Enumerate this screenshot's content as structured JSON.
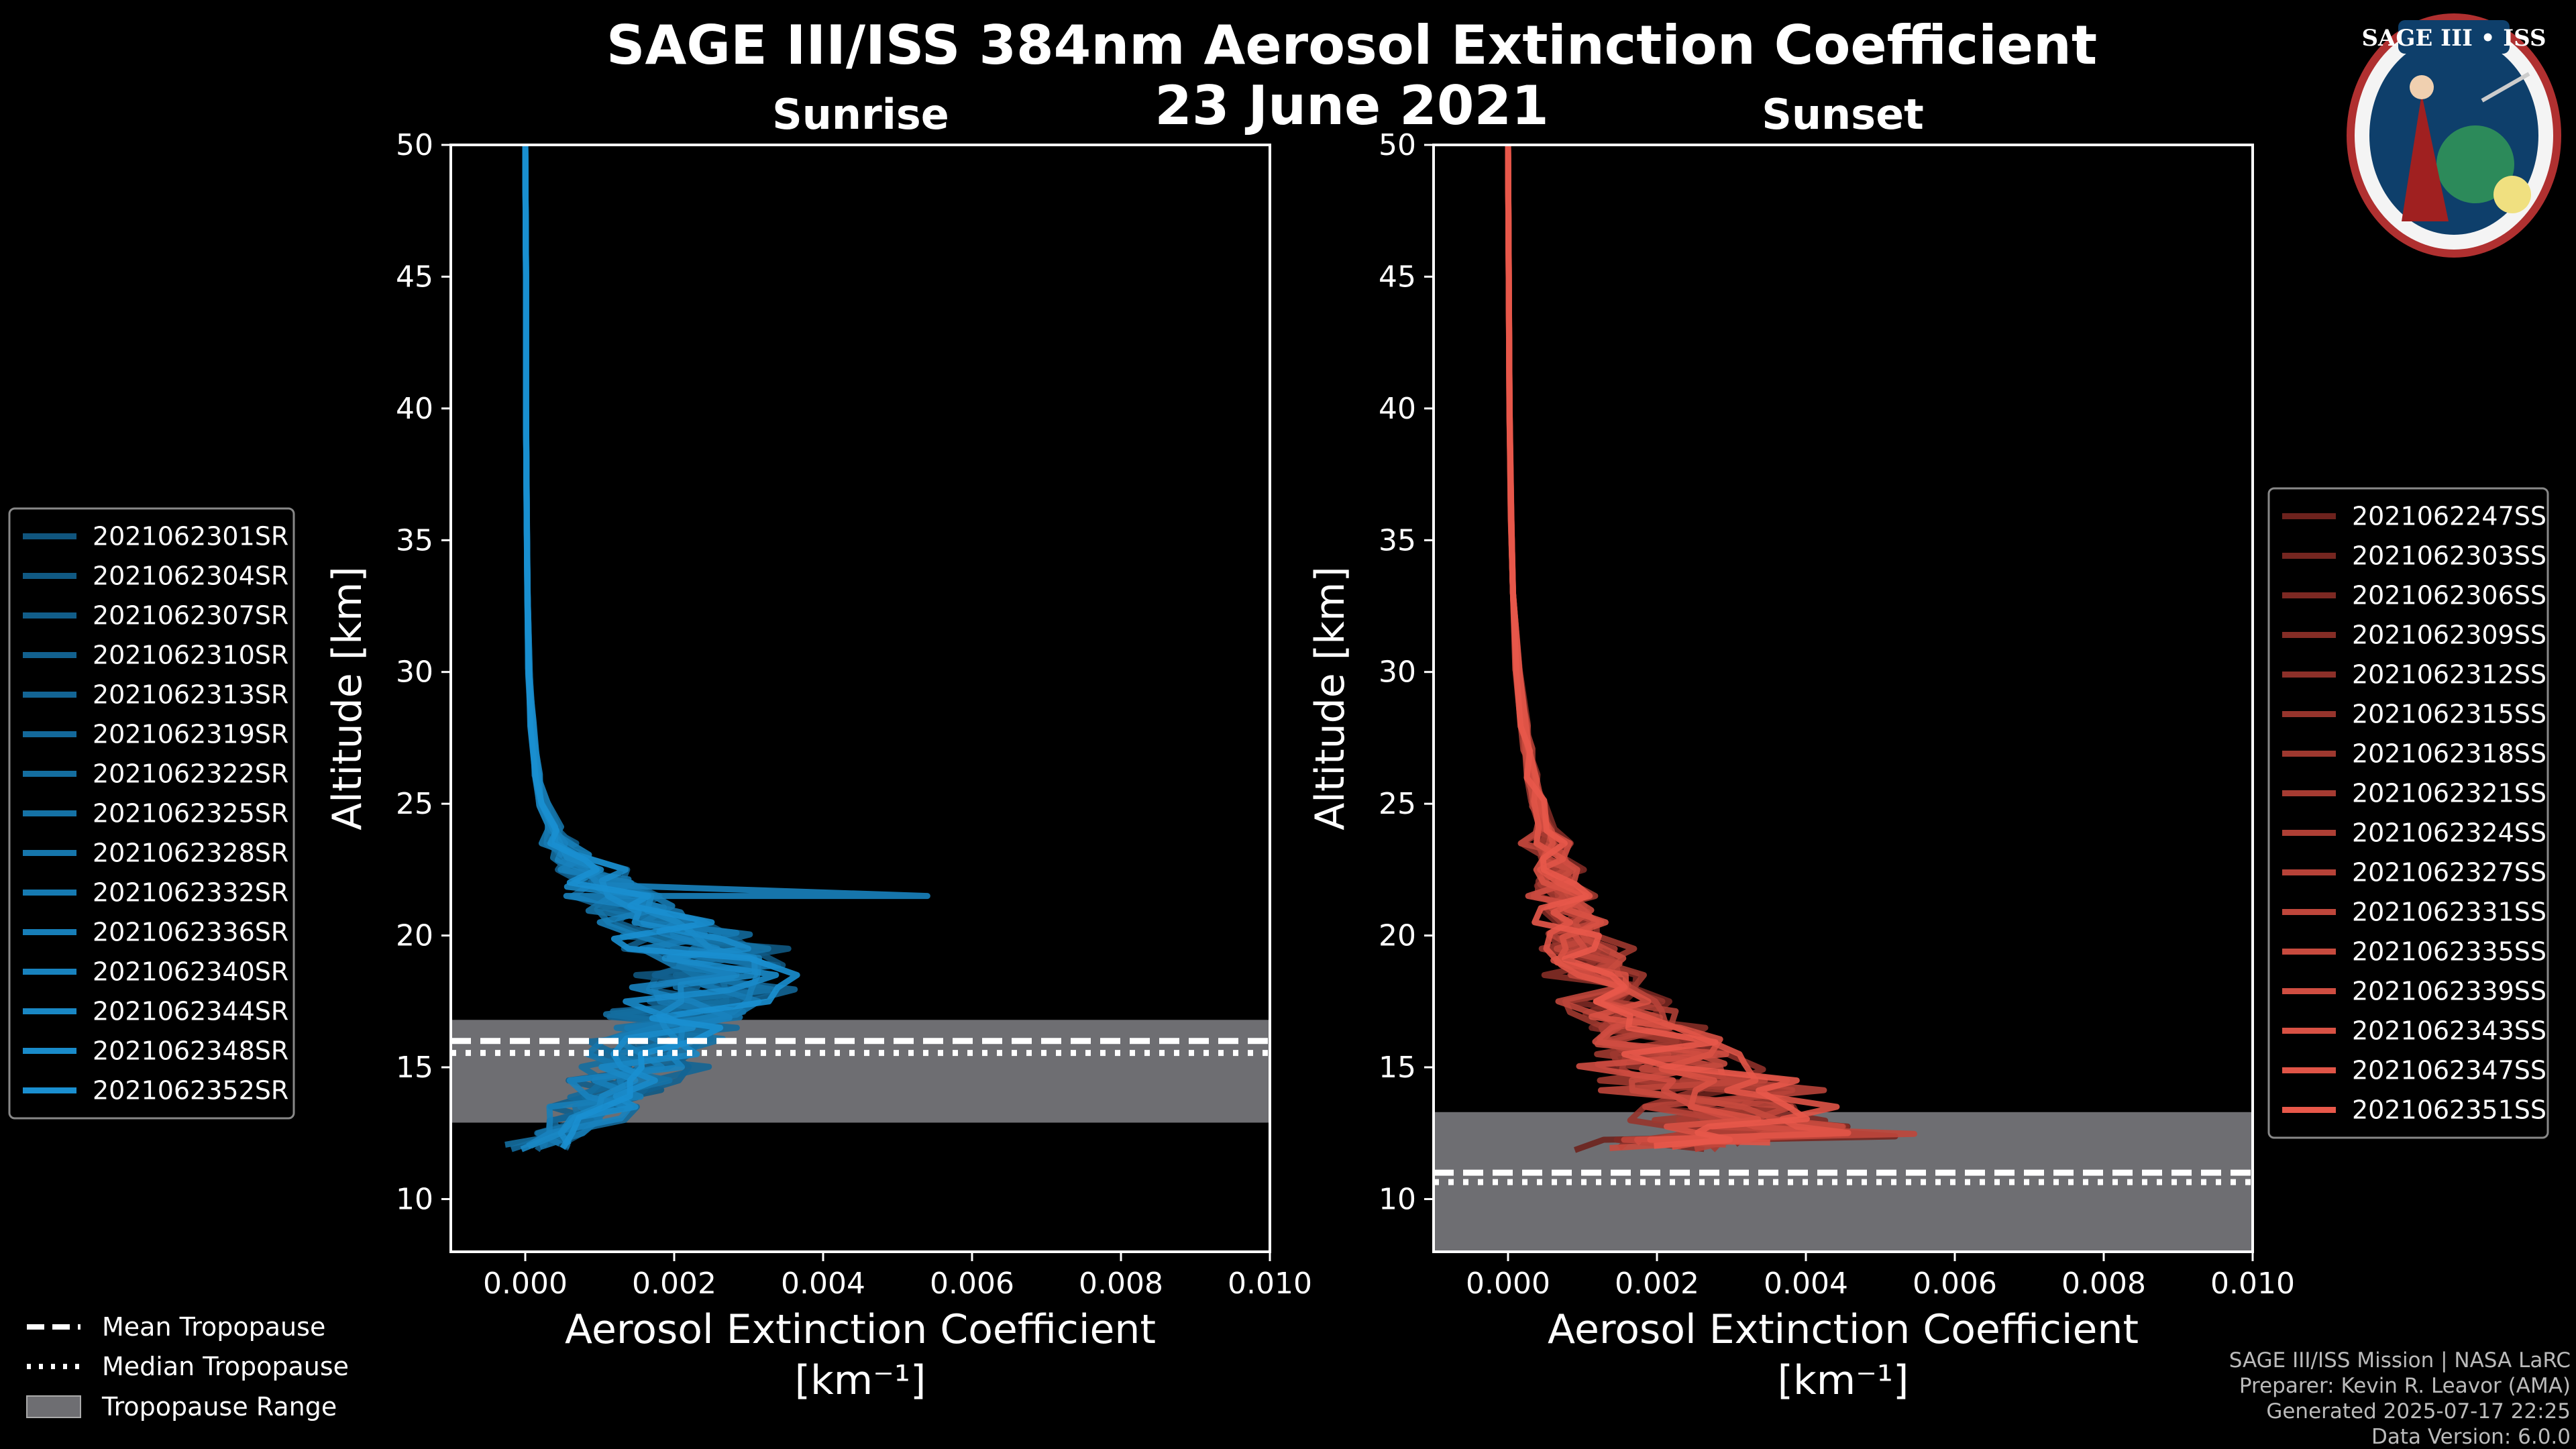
{
  "figure": {
    "title_line1": "SAGE III/ISS 384nm Aerosol Extinction Coefficient",
    "title_line2": "23 June 2021",
    "logo_text": "SAGE III • ISS"
  },
  "credits": {
    "line1": "SAGE III/ISS Mission | NASA LaRC",
    "line2": "Preparer: Kevin R. Leavor (AMA)",
    "line3": "Generated 2025-07-17 22:25",
    "line4": "Data Version: 6.0.0"
  },
  "tropopause_legend": {
    "mean": "Mean Tropopause",
    "median": "Median Tropopause",
    "range": "Tropopause Range"
  },
  "colors": {
    "sunrise_dark": "#0a3550",
    "sunrise_light": "#1a8fd0",
    "sunset_dark": "#2a0505",
    "sunset_light": "#e8584a",
    "tropopause_fill": "#6e6e72"
  },
  "chart_data": [
    {
      "type": "line",
      "panel": "sunrise",
      "title": "Sunrise",
      "xlabel": "Aerosol Extinction Coefficient",
      "xunits": "[km⁻¹]",
      "ylabel": "Altitude [km]",
      "xlim": [
        -0.001,
        0.01
      ],
      "ylim": [
        8,
        50
      ],
      "xticks": [
        0.0,
        0.002,
        0.004,
        0.006,
        0.008,
        0.01
      ],
      "xtick_labels": [
        "0.000",
        "0.002",
        "0.004",
        "0.006",
        "0.008",
        "0.010"
      ],
      "yticks": [
        10,
        15,
        20,
        25,
        30,
        35,
        40,
        45,
        50
      ],
      "ytick_labels": [
        "10",
        "15",
        "20",
        "25",
        "30",
        "35",
        "40",
        "45",
        "50"
      ],
      "tropopause": {
        "mean": 16.0,
        "median": 15.8,
        "range": [
          12.9,
          16.8
        ]
      },
      "legend": [
        "2021062301SR",
        "2021062304SR",
        "2021062307SR",
        "2021062310SR",
        "2021062313SR",
        "2021062319SR",
        "2021062322SR",
        "2021062325SR",
        "2021062328SR",
        "2021062332SR",
        "2021062336SR",
        "2021062340SR",
        "2021062344SR",
        "2021062348SR",
        "2021062352SR"
      ],
      "base_profile": {
        "altitude": [
          12,
          13,
          14,
          15,
          16,
          17,
          18,
          19,
          20,
          21,
          22,
          23,
          24,
          25,
          26,
          28,
          30,
          33,
          36,
          40,
          45,
          50
        ],
        "value": [
          0.0002,
          0.0008,
          0.0012,
          0.0015,
          0.0018,
          0.0021,
          0.0025,
          0.0026,
          0.0021,
          0.0015,
          0.001,
          0.0006,
          0.0004,
          0.00025,
          0.00016,
          9e-05,
          5e-05,
          3e-05,
          2e-05,
          1e-05,
          1e-05,
          0.0
        ]
      },
      "spike": {
        "series": "2021062340SR",
        "altitude": 21.5,
        "value": 0.0054
      }
    },
    {
      "type": "line",
      "panel": "sunset",
      "title": "Sunset",
      "xlabel": "Aerosol Extinction Coefficient",
      "xunits": "[km⁻¹]",
      "ylabel": "Altitude [km]",
      "xlim": [
        -0.001,
        0.01
      ],
      "ylim": [
        8,
        50
      ],
      "xticks": [
        0.0,
        0.002,
        0.004,
        0.006,
        0.008,
        0.01
      ],
      "xtick_labels": [
        "0.000",
        "0.002",
        "0.004",
        "0.006",
        "0.008",
        "0.010"
      ],
      "yticks": [
        10,
        15,
        20,
        25,
        30,
        35,
        40,
        45,
        50
      ],
      "ytick_labels": [
        "10",
        "15",
        "20",
        "25",
        "30",
        "35",
        "40",
        "45",
        "50"
      ],
      "tropopause": {
        "mean": 11.0,
        "median": 10.9,
        "range": [
          8.0,
          13.3
        ]
      },
      "legend": [
        "2021062247SS",
        "2021062303SS",
        "2021062306SS",
        "2021062309SS",
        "2021062312SS",
        "2021062315SS",
        "2021062318SS",
        "2021062321SS",
        "2021062324SS",
        "2021062327SS",
        "2021062331SS",
        "2021062335SS",
        "2021062339SS",
        "2021062343SS",
        "2021062347SS",
        "2021062351SS"
      ],
      "base_profile": {
        "altitude": [
          12,
          12.5,
          13,
          14,
          15,
          16,
          17,
          18,
          19,
          20,
          21,
          22,
          23,
          24,
          25,
          26,
          27,
          28,
          30,
          33,
          36,
          40,
          45,
          50
        ],
        "value": [
          0.0022,
          0.0035,
          0.003,
          0.0028,
          0.0024,
          0.0019,
          0.0016,
          0.0013,
          0.0011,
          0.0009,
          0.0008,
          0.0007,
          0.0006,
          0.0005,
          0.0004,
          0.00033,
          0.00027,
          0.00022,
          0.00013,
          7e-05,
          4e-05,
          2e-05,
          1e-05,
          0.0
        ]
      }
    }
  ]
}
